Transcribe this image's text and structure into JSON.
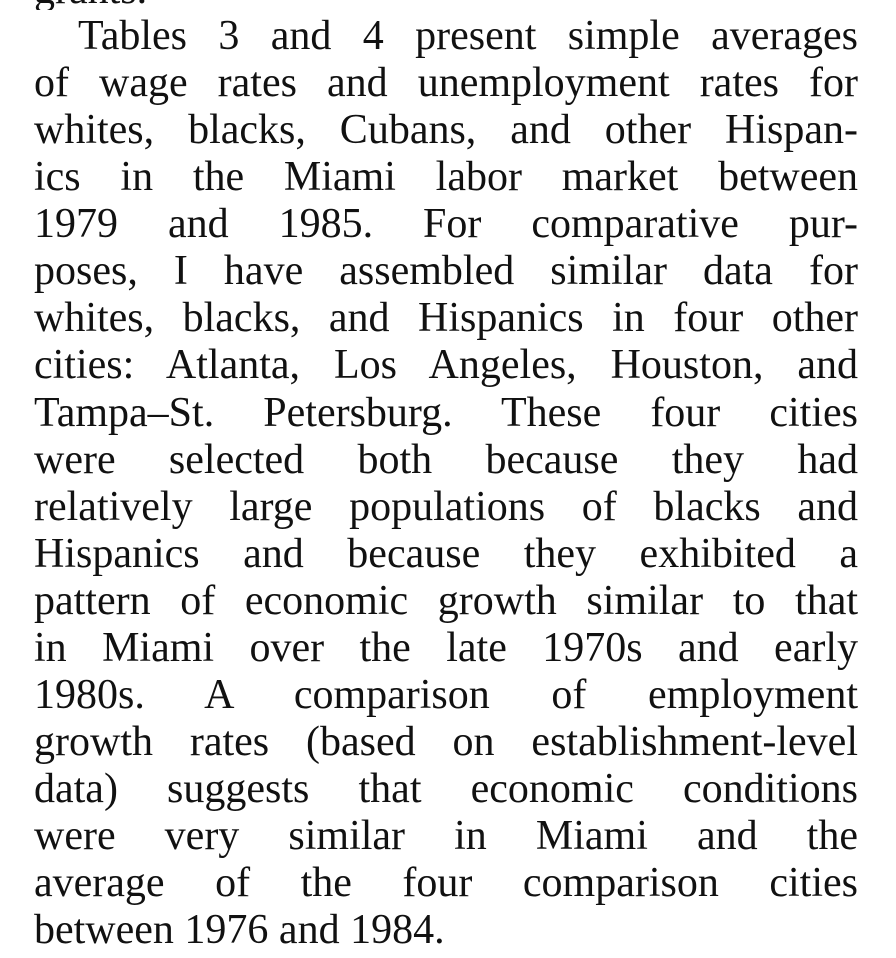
{
  "document": {
    "cut_off_top_line": "grants.",
    "paragraph_lines": [
      "Tables 3 and 4 present simple averages",
      "of wage rates and unemployment rates for",
      "whites, blacks, Cubans, and other Hispan-",
      "ics in the Miami labor market between",
      "1979 and 1985. For comparative pur-",
      "poses, I have assembled similar data for",
      "whites, blacks, and Hispanics in four other",
      "cities: Atlanta, Los Angeles, Houston, and",
      "Tampa–St. Petersburg. These four cities",
      "were selected both because they had",
      "relatively large populations of blacks and",
      "Hispanics and because they exhibited a",
      "pattern of economic growth similar to that",
      "in Miami over the late 1970s and early",
      "1980s. A comparison of employment",
      "growth rates (based on establishment-level",
      "data) suggests that economic conditions",
      "were very similar in Miami and the",
      "average of the four comparison cities",
      "between 1976 and 1984."
    ]
  }
}
